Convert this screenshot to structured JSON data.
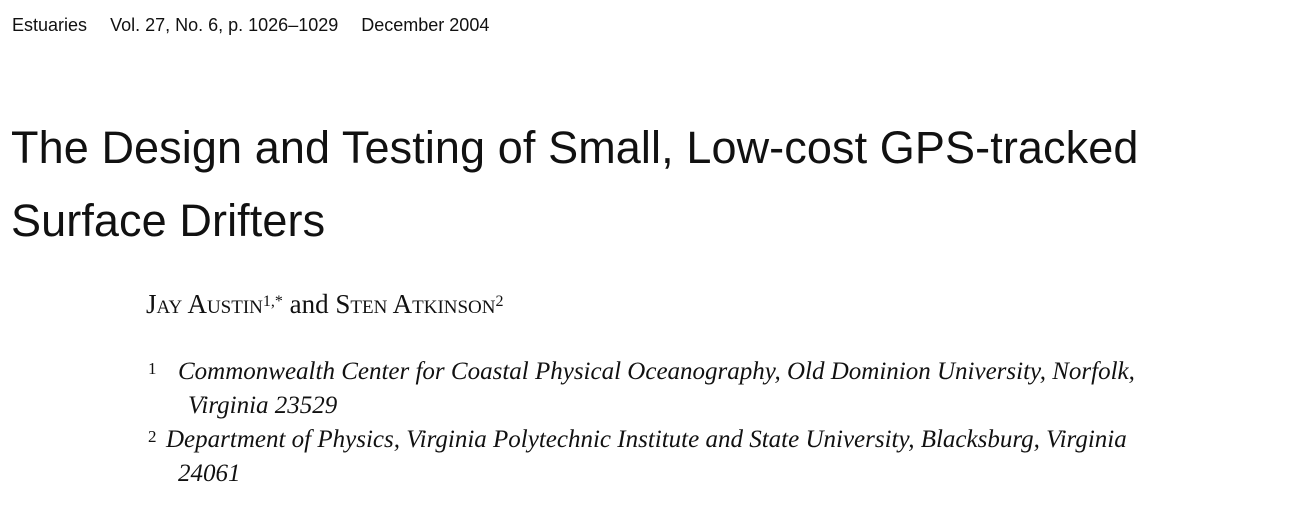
{
  "journal": {
    "name": "Estuaries",
    "volume": "Vol. 27, No. 6, p. 1026–1029",
    "date": "December 2004"
  },
  "title": {
    "line1": "The Design and Testing of Small, Low-cost GPS-tracked",
    "line2": "Surface Drifters"
  },
  "authors": {
    "author1": "Jay Austin",
    "author1_marks": "1,*",
    "connector": "and",
    "author2": "Sten Atkinson",
    "author2_marks": "2"
  },
  "affiliations": [
    {
      "num": "1",
      "line1": "Commonwealth Center for Coastal Physical Oceanography, Old Dominion University, Norfolk,",
      "line2": "Virginia 23529"
    },
    {
      "num": "2",
      "line1": "Department of Physics, Virginia Polytechnic Institute and State University, Blacksburg, Virginia",
      "line2": "24061"
    }
  ]
}
